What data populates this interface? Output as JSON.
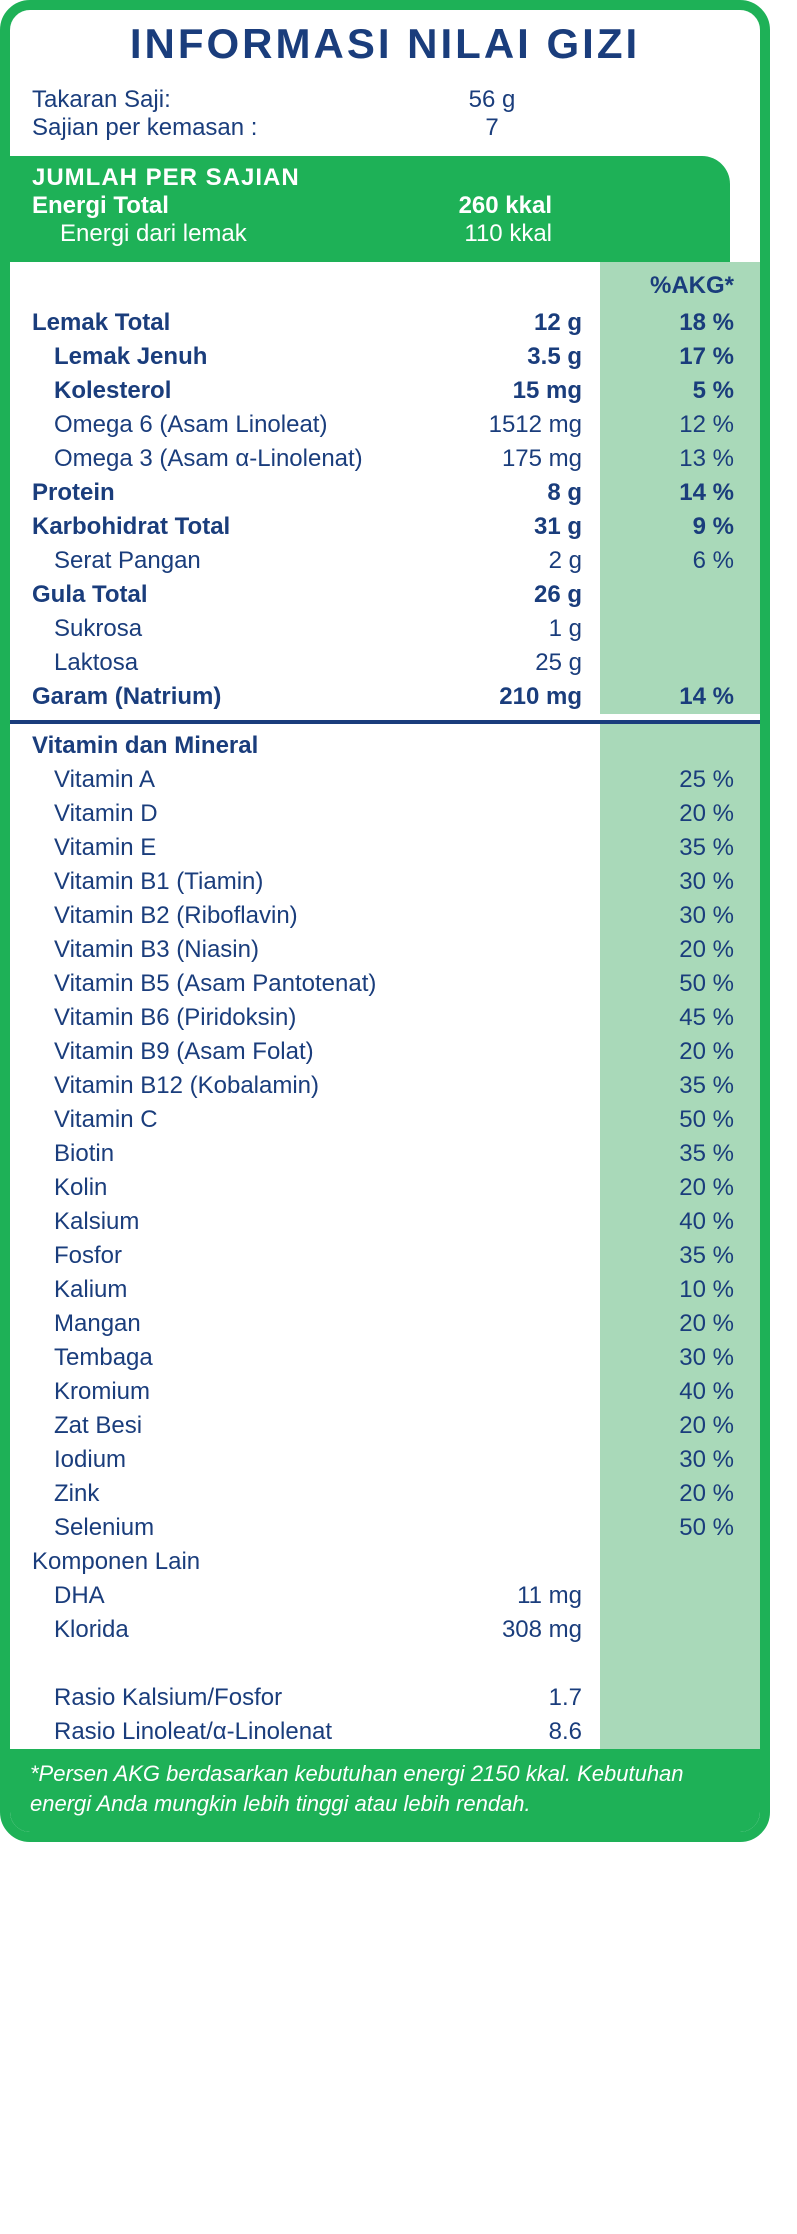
{
  "colors": {
    "brand_green": "#1eb157",
    "pale_green": "#a9d9b9",
    "text_navy": "#1a3d7c",
    "white": "#ffffff"
  },
  "title": "INFORMASI NILAI GIZI",
  "serving": {
    "size_label": "Takaran Saji:",
    "size_value": "56 g",
    "per_pack_label": "Sajian per kemasan :",
    "per_pack_value": "7"
  },
  "energy": {
    "header": "JUMLAH PER SAJIAN",
    "total_label": "Energi Total",
    "total_value": "260 kkal",
    "fat_label": "Energi dari lemak",
    "fat_value": "110 kkal"
  },
  "akg_header": "%AKG*",
  "nutrients": [
    {
      "label": "Lemak Total",
      "amount": "12 g",
      "akg": "18 %",
      "bold": true,
      "indent": 0
    },
    {
      "label": "Lemak Jenuh",
      "amount": "3.5 g",
      "akg": "17 %",
      "bold": true,
      "indent": 1
    },
    {
      "label": "Kolesterol",
      "amount": "15 mg",
      "akg": "5 %",
      "bold": true,
      "indent": 1
    },
    {
      "label": "Omega 6 (Asam Linoleat)",
      "amount": "1512 mg",
      "akg": "12 %",
      "bold": false,
      "indent": 1
    },
    {
      "label": "Omega 3 (Asam α-Linolenat)",
      "amount": "175 mg",
      "akg": "13 %",
      "bold": false,
      "indent": 1
    },
    {
      "label": "Protein",
      "amount": "8 g",
      "akg": "14 %",
      "bold": true,
      "indent": 0
    },
    {
      "label": "Karbohidrat Total",
      "amount": "31 g",
      "akg": "9 %",
      "bold": true,
      "indent": 0
    },
    {
      "label": "Serat Pangan",
      "amount": "2 g",
      "akg": "6 %",
      "bold": false,
      "indent": 1
    },
    {
      "label": "Gula Total",
      "amount": "26 g",
      "akg": "",
      "bold": true,
      "indent": 0
    },
    {
      "label": "Sukrosa",
      "amount": "1 g",
      "akg": "",
      "bold": false,
      "indent": 1
    },
    {
      "label": "Laktosa",
      "amount": "25 g",
      "akg": "",
      "bold": false,
      "indent": 1
    },
    {
      "label": "Garam (Natrium)",
      "amount": "210 mg",
      "akg": "14 %",
      "bold": true,
      "indent": 0
    }
  ],
  "vitmin_header": "Vitamin dan Mineral",
  "vitamins": [
    {
      "label": "Vitamin A",
      "akg": "25 %"
    },
    {
      "label": "Vitamin D",
      "akg": "20 %"
    },
    {
      "label": "Vitamin E",
      "akg": "35 %"
    },
    {
      "label": "Vitamin B1 (Tiamin)",
      "akg": "30 %"
    },
    {
      "label": "Vitamin B2 (Riboflavin)",
      "akg": "30 %"
    },
    {
      "label": "Vitamin B3 (Niasin)",
      "akg": "20 %"
    },
    {
      "label": "Vitamin B5 (Asam Pantotenat)",
      "akg": "50 %"
    },
    {
      "label": "Vitamin B6 (Piridoksin)",
      "akg": "45 %"
    },
    {
      "label": "Vitamin B9 (Asam Folat)",
      "akg": "20 %"
    },
    {
      "label": "Vitamin B12 (Kobalamin)",
      "akg": "35 %"
    },
    {
      "label": "Vitamin C",
      "akg": "50 %"
    },
    {
      "label": "Biotin",
      "akg": "35 %"
    },
    {
      "label": "Kolin",
      "akg": "20 %"
    },
    {
      "label": "Kalsium",
      "akg": "40 %"
    },
    {
      "label": "Fosfor",
      "akg": "35 %"
    },
    {
      "label": "Kalium",
      "akg": "10 %"
    },
    {
      "label": "Mangan",
      "akg": "20 %"
    },
    {
      "label": "Tembaga",
      "akg": "30 %"
    },
    {
      "label": "Kromium",
      "akg": "40 %"
    },
    {
      "label": "Zat Besi",
      "akg": "20 %"
    },
    {
      "label": "Iodium",
      "akg": "30 %"
    },
    {
      "label": "Zink",
      "akg": "20 %"
    },
    {
      "label": "Selenium",
      "akg": "50 %"
    }
  ],
  "other_header": "Komponen Lain",
  "other": [
    {
      "label": "DHA",
      "amount": "11 mg"
    },
    {
      "label": "Klorida",
      "amount": "308 mg"
    }
  ],
  "ratios": [
    {
      "label": "Rasio Kalsium/Fosfor",
      "amount": "1.7"
    },
    {
      "label": "Rasio Linoleat/α-Linolenat",
      "amount": "8.6"
    }
  ],
  "footnote": "*Persen AKG berdasarkan kebutuhan energi 2150 kkal. Kebutuhan energi Anda mungkin lebih tinggi atau lebih rendah."
}
